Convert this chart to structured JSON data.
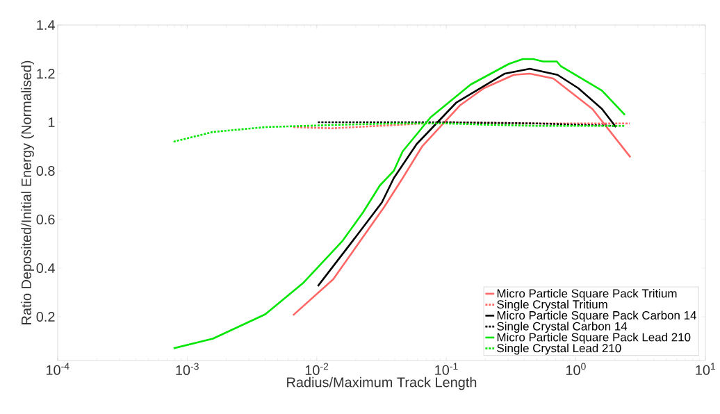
{
  "chart_data": {
    "type": "line",
    "xlabel": "Radius/Maximum Track Length",
    "ylabel": "Ratio Deposited/Initial Energy (Normalised)",
    "log": "x",
    "legend": "bottom right",
    "grid": false,
    "xlim": [
      0.0001,
      10
    ],
    "ylim": [
      0.02,
      1.4
    ],
    "xticks": [
      {
        "value": 0.0001,
        "label": "10$^{-4}$"
      },
      {
        "value": 0.001,
        "label": "10$^{-3}$"
      },
      {
        "value": 0.01,
        "label": "10$^{-2}$"
      },
      {
        "value": 0.1,
        "label": "10$^{-1}$"
      },
      {
        "value": 1,
        "label": "10$^{0}$"
      },
      {
        "value": 10,
        "label": "10$^{1}$"
      }
    ],
    "yticks": [
      0.2,
      0.4,
      0.6,
      0.8,
      1,
      1.2,
      1.4
    ],
    "series": [
      {
        "name": "Micro Particle Square Pack Tritium",
        "color": "#ff6666",
        "line_style": "solid",
        "x": [
          0.00656,
          0.0134,
          0.033,
          0.046,
          0.065,
          0.128,
          0.195,
          0.332,
          0.441,
          0.67,
          1.34,
          2.64
        ],
        "values": [
          0.206,
          0.354,
          0.65,
          0.77,
          0.9,
          1.07,
          1.14,
          1.195,
          1.2,
          1.18,
          1.055,
          0.856
        ]
      },
      {
        "name": "Single Crystal Tritium",
        "color": "#ff6666",
        "line_style": "dotted",
        "x": [
          0.0066,
          0.013,
          0.03,
          0.1,
          0.5,
          1,
          2.6
        ],
        "values": [
          0.98,
          0.975,
          0.985,
          1.0,
          0.995,
          0.995,
          0.995
        ]
      },
      {
        "name": "Micro Particle Square Pack Carbon 14",
        "color": "#000000",
        "line_style": "solid",
        "x": [
          0.0102,
          0.0201,
          0.0318,
          0.0393,
          0.059,
          0.119,
          0.283,
          0.441,
          0.722,
          1.045,
          1.59,
          2.04
        ],
        "values": [
          0.326,
          0.53,
          0.67,
          0.77,
          0.91,
          1.08,
          1.2,
          1.22,
          1.195,
          1.14,
          1.055,
          0.98
        ]
      },
      {
        "name": "Single Crystal Carbon 14",
        "color": "#000000",
        "line_style": "dotted",
        "x": [
          0.0102,
          0.1,
          0.5,
          1,
          2.0
        ],
        "values": [
          1.0,
          1.0,
          0.995,
          0.99,
          0.985
        ]
      },
      {
        "name": "Micro Particle Square Pack Lead 210",
        "color": "#00e600",
        "line_style": "solid",
        "x": [
          0.000785,
          0.00158,
          0.004,
          0.0079,
          0.0157,
          0.0228,
          0.0307,
          0.0393,
          0.046,
          0.059,
          0.0755,
          0.154,
          0.304,
          0.39,
          0.469,
          0.557,
          0.713,
          0.768,
          1.59,
          2.39
        ],
        "values": [
          0.07,
          0.11,
          0.21,
          0.34,
          0.51,
          0.63,
          0.74,
          0.8,
          0.88,
          0.95,
          1.02,
          1.155,
          1.24,
          1.26,
          1.26,
          1.25,
          1.25,
          1.23,
          1.13,
          1.03
        ]
      },
      {
        "name": "Single Crystal Lead 210",
        "color": "#00e600",
        "line_style": "dotted",
        "x": [
          0.000785,
          0.00158,
          0.004,
          0.008,
          0.016,
          0.04,
          0.1,
          0.2,
          0.5,
          1,
          2.4
        ],
        "values": [
          0.92,
          0.96,
          0.98,
          0.985,
          0.99,
          0.995,
          0.995,
          0.99,
          0.985,
          0.985,
          0.985
        ]
      }
    ]
  }
}
